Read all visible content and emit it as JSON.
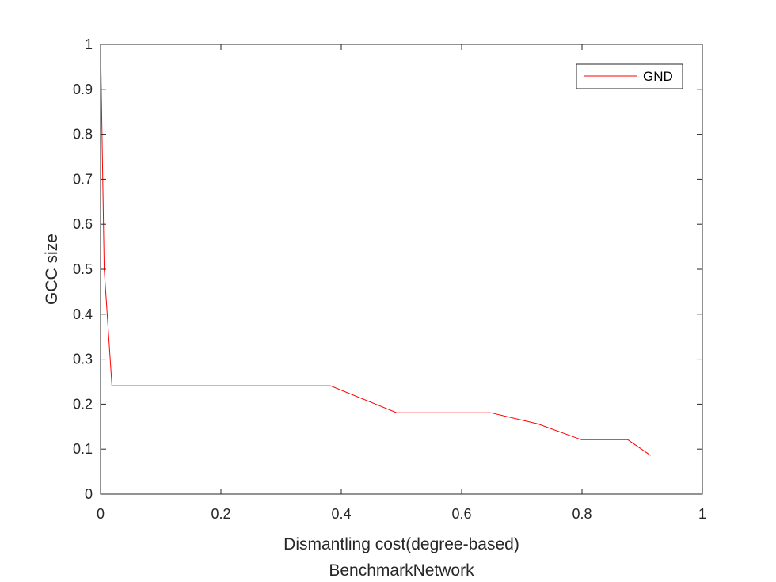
{
  "chart_data": {
    "type": "line",
    "xlabel": "Dismantling cost(degree-based)",
    "ylabel": "GCC size",
    "subtitle": "BenchmarkNetwork",
    "xlim": [
      0,
      1
    ],
    "ylim": [
      0,
      1
    ],
    "xticks": [
      0,
      0.2,
      0.4,
      0.6,
      0.8,
      1
    ],
    "xtick_labels": [
      "0",
      "0.2",
      "0.4",
      "0.6",
      "0.8",
      "1"
    ],
    "yticks": [
      0,
      0.1,
      0.2,
      0.3,
      0.4,
      0.5,
      0.6,
      0.7,
      0.8,
      0.9,
      1
    ],
    "ytick_labels": [
      "0",
      "0.1",
      "0.2",
      "0.3",
      "0.4",
      "0.5",
      "0.6",
      "0.7",
      "0.8",
      "0.9",
      "1"
    ],
    "grid": false,
    "legend_position": "top-right",
    "series": [
      {
        "name": "GND",
        "color": "#ff0000",
        "x": [
          0,
          0.006,
          0.019,
          0.382,
          0.492,
          0.648,
          0.727,
          0.799,
          0.876,
          0.914
        ],
        "y": [
          1,
          0.5,
          0.241,
          0.241,
          0.181,
          0.181,
          0.156,
          0.121,
          0.121,
          0.086
        ]
      }
    ]
  }
}
